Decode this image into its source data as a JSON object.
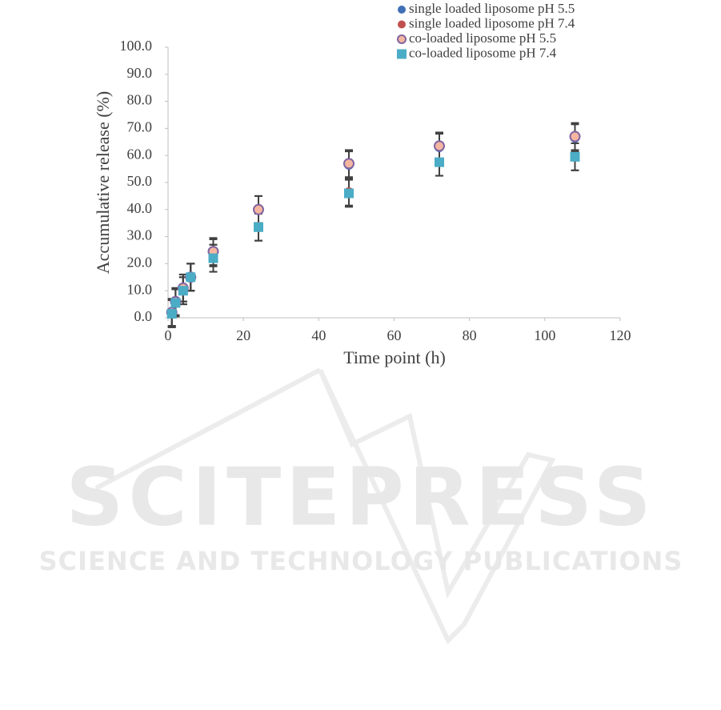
{
  "chart_data": {
    "type": "scatter",
    "x_label": "Time point (h)",
    "y_label": "Accumulative release (%)",
    "x": [
      1,
      2,
      4,
      6,
      12,
      24,
      48,
      72,
      108
    ],
    "series": [
      {
        "name": "single loaded liposome pH 5.5",
        "color": "#3f6fb5",
        "marker": "circle",
        "values": [
          2,
          6,
          11,
          15,
          24,
          40,
          56.5,
          63,
          66.5
        ],
        "errors": [
          5,
          5,
          5,
          5,
          5,
          5,
          5,
          5,
          5
        ]
      },
      {
        "name": "single loaded liposome pH 7.4",
        "color": "#c0504d",
        "marker": "circle",
        "values": [
          1.5,
          5.5,
          10,
          15,
          22,
          33.5,
          46.5,
          57.5,
          59.5
        ],
        "errors": [
          5,
          5,
          5,
          5,
          5,
          5,
          5,
          5,
          5
        ]
      },
      {
        "name": "co-loaded liposome pH 5.5",
        "color": "#f4b6a0",
        "edge": "#8064a2",
        "marker": "circle",
        "values": [
          2,
          6,
          11,
          15,
          24.5,
          40,
          57,
          63.5,
          67
        ],
        "errors": [
          5,
          5,
          5,
          5,
          5,
          5,
          5,
          5,
          5
        ]
      },
      {
        "name": "co-loaded liposome pH 7.4",
        "color": "#4bacc6",
        "marker": "square",
        "values": [
          1.5,
          5.5,
          10,
          15,
          22,
          33.5,
          46,
          57.5,
          59.5
        ],
        "errors": [
          5,
          5,
          5,
          5,
          5,
          5,
          5,
          5,
          5
        ]
      }
    ],
    "xlim": [
      0,
      120
    ],
    "xticks": [
      0,
      20,
      40,
      60,
      80,
      100,
      120
    ],
    "ylim": [
      0,
      100
    ],
    "yticks": [
      {
        "value": 0,
        "label": "0.0"
      },
      {
        "value": 10,
        "label": "10.0"
      },
      {
        "value": 20,
        "label": "20.0"
      },
      {
        "value": 30,
        "label": "30.0"
      },
      {
        "value": 40,
        "label": "40.0"
      },
      {
        "value": 50,
        "label": "50.0"
      },
      {
        "value": 60,
        "label": "60.0"
      },
      {
        "value": 70,
        "label": "70.0"
      },
      {
        "value": 80,
        "label": "80.0"
      },
      {
        "value": 90,
        "label": "90.0"
      },
      {
        "value": 100,
        "label": "100.0"
      }
    ],
    "grid": false,
    "legend": "top-right"
  },
  "watermark": {
    "title": "SCITEPRESS",
    "subtitle": "SCIENCE AND TECHNOLOGY PUBLICATIONS"
  }
}
